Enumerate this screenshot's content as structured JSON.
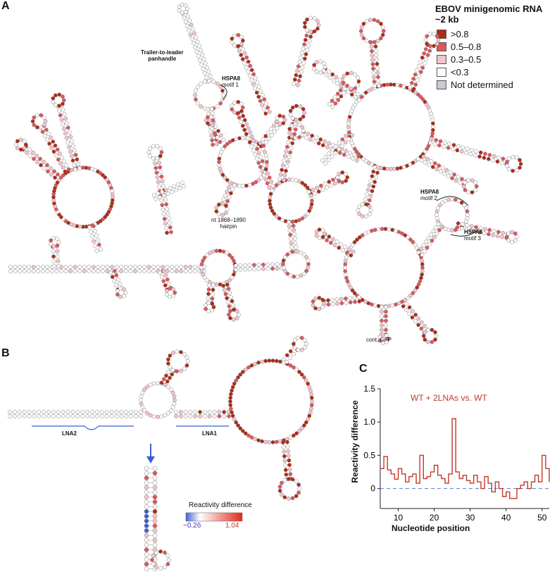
{
  "panels": {
    "a": "A",
    "b": "B",
    "c": "C"
  },
  "legend": {
    "title_line1": "EBOV minigenomic RNA",
    "title_line2": "~2 kb",
    "items": [
      {
        "label": ">0.8",
        "color": "#b22a14"
      },
      {
        "label": "0.5–0.8",
        "color": "#e0555a"
      },
      {
        "label": "0.3–0.5",
        "color": "#f4c4cf"
      },
      {
        "label": "<0.3",
        "color": "#ffffff"
      },
      {
        "label": "Not determined",
        "color": "#c6cbd3"
      }
    ]
  },
  "annotations_a": {
    "panhandle_1": "Trailer-to-leader",
    "panhandle_2": "panhandle",
    "motif1_a": "HSPA8",
    "motif1_b": "motif 1",
    "hairpin_1": "nt 1868–1890",
    "hairpin_2": "hairpin",
    "motif2_a": "HSPA8",
    "motif2_b": "motif 2",
    "motif3_a": "HSPA8",
    "motif3_b": "motif 3",
    "gfp": "cont. GFP"
  },
  "annotations_b": {
    "lna2": "LNA2",
    "lna1": "LNA1",
    "cbar_title": "Reactivity difference",
    "cbar_min": "−0.26",
    "cbar_max": "1.04"
  },
  "colors": {
    "high": "#b22a14",
    "mid": "#e0555a",
    "low": "#f4c4cf",
    "none": "#ffffff",
    "nd": "#c6cbd3",
    "blue": "#3b5fd6",
    "line": "#c0392b"
  },
  "chart_data": {
    "type": "line",
    "title": "",
    "annotation": "WT + 2LNAs vs. WT",
    "xlabel": "Nucleotide position",
    "ylabel": "Reactivity difference",
    "xlim": [
      5,
      52
    ],
    "ylim": [
      -0.3,
      1.5
    ],
    "xticks": [
      10,
      20,
      30,
      40,
      50
    ],
    "yticks": [
      0,
      0.5,
      1.0,
      1.5
    ],
    "ytick_labels": [
      "0",
      "0.5",
      "1.0",
      "1.5"
    ],
    "x": [
      5,
      6,
      7,
      8,
      9,
      10,
      11,
      12,
      13,
      14,
      15,
      16,
      17,
      18,
      19,
      20,
      21,
      22,
      23,
      24,
      25,
      26,
      27,
      28,
      29,
      30,
      31,
      32,
      33,
      34,
      35,
      36,
      37,
      38,
      39,
      40,
      41,
      42,
      43,
      44,
      45,
      46,
      47,
      48,
      49,
      50,
      51,
      52
    ],
    "values": [
      0.3,
      0.48,
      0.28,
      0.22,
      0.14,
      0.3,
      0.22,
      0.1,
      0.18,
      0.22,
      0.08,
      0.5,
      0.15,
      0.18,
      0.25,
      0.35,
      0.2,
      0.15,
      0.08,
      0.22,
      1.05,
      0.25,
      0.15,
      0.2,
      0.12,
      0.08,
      0.2,
      0.1,
      0.0,
      0.18,
      0.08,
      -0.05,
      0.1,
      0.0,
      -0.12,
      -0.05,
      -0.15,
      -0.15,
      0.0,
      0.05,
      0.1,
      0.0,
      0.1,
      0.2,
      0.1,
      0.5,
      0.3,
      0.1
    ]
  }
}
